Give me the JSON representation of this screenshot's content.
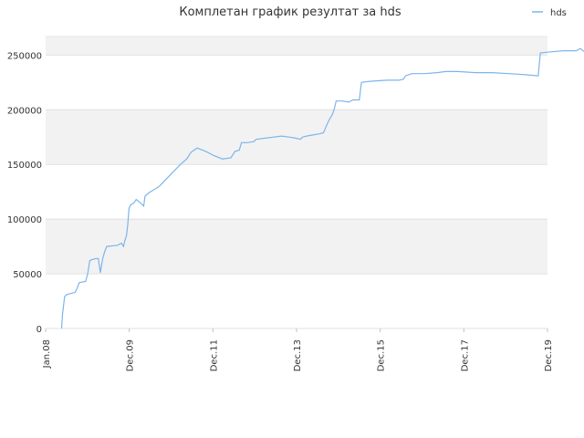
{
  "chart_data": {
    "type": "line",
    "title": "Комплетан график резултат за hds",
    "xlabel": "",
    "ylabel": "",
    "x_tick_labels": [
      "Jan.08",
      "Dec.09",
      "Dec.11",
      "Dec.13",
      "Dec.15",
      "Dec.17",
      "Dec.19"
    ],
    "y_tick_labels": [
      "0",
      "50000",
      "100000",
      "150000",
      "200000",
      "250000"
    ],
    "ylim": [
      0,
      267000
    ],
    "grid": true,
    "legend": "top-right",
    "series_color": "#7cb5ec",
    "series": [
      {
        "name": "hds",
        "points": [
          [
            2008.38,
            0
          ],
          [
            2008.4,
            13000
          ],
          [
            2008.43,
            22000
          ],
          [
            2008.45,
            29000
          ],
          [
            2008.5,
            31000
          ],
          [
            2008.6,
            32000
          ],
          [
            2008.7,
            33000
          ],
          [
            2008.75,
            37000
          ],
          [
            2008.8,
            42000
          ],
          [
            2008.95,
            43000
          ],
          [
            2009.0,
            50000
          ],
          [
            2009.05,
            62000
          ],
          [
            2009.1,
            63000
          ],
          [
            2009.2,
            64000
          ],
          [
            2009.25,
            64000
          ],
          [
            2009.3,
            51000
          ],
          [
            2009.35,
            63000
          ],
          [
            2009.4,
            70000
          ],
          [
            2009.45,
            75000
          ],
          [
            2009.7,
            76000
          ],
          [
            2009.8,
            78000
          ],
          [
            2009.85,
            75000
          ],
          [
            2009.88,
            80000
          ],
          [
            2009.92,
            85000
          ],
          [
            2009.95,
            95000
          ],
          [
            2009.98,
            110000
          ],
          [
            2010.02,
            113000
          ],
          [
            2010.1,
            115000
          ],
          [
            2010.15,
            118000
          ],
          [
            2010.25,
            115000
          ],
          [
            2010.33,
            112000
          ],
          [
            2010.36,
            121000
          ],
          [
            2010.45,
            124000
          ],
          [
            2010.7,
            130000
          ],
          [
            2010.9,
            138000
          ],
          [
            2011.2,
            150000
          ],
          [
            2011.35,
            155000
          ],
          [
            2011.45,
            161000
          ],
          [
            2011.6,
            165000
          ],
          [
            2011.8,
            162000
          ],
          [
            2012.0,
            158000
          ],
          [
            2012.2,
            155000
          ],
          [
            2012.4,
            156000
          ],
          [
            2012.5,
            162000
          ],
          [
            2012.6,
            163000
          ],
          [
            2012.65,
            170000
          ],
          [
            2012.8,
            170000
          ],
          [
            2012.95,
            171000
          ],
          [
            2013.0,
            173000
          ],
          [
            2013.2,
            174000
          ],
          [
            2013.4,
            175000
          ],
          [
            2013.6,
            176000
          ],
          [
            2013.8,
            175000
          ],
          [
            2013.95,
            174000
          ],
          [
            2014.05,
            173000
          ],
          [
            2014.1,
            175000
          ],
          [
            2014.2,
            176000
          ],
          [
            2014.35,
            177000
          ],
          [
            2014.5,
            178000
          ],
          [
            2014.6,
            179000
          ],
          [
            2014.7,
            188000
          ],
          [
            2014.75,
            192000
          ],
          [
            2014.8,
            195000
          ],
          [
            2014.85,
            200000
          ],
          [
            2014.9,
            208000
          ],
          [
            2015.05,
            208000
          ],
          [
            2015.2,
            207000
          ],
          [
            2015.3,
            209000
          ],
          [
            2015.45,
            209000
          ],
          [
            2015.5,
            225000
          ],
          [
            2015.7,
            226000
          ],
          [
            2016.1,
            227000
          ],
          [
            2016.4,
            227000
          ],
          [
            2016.5,
            228000
          ],
          [
            2016.55,
            231000
          ],
          [
            2016.7,
            233000
          ],
          [
            2017.0,
            233000
          ],
          [
            2017.3,
            234000
          ],
          [
            2017.5,
            235000
          ],
          [
            2017.8,
            235000
          ],
          [
            2018.2,
            234000
          ],
          [
            2018.6,
            234000
          ],
          [
            2019.0,
            233000
          ],
          [
            2019.4,
            232000
          ],
          [
            2019.7,
            231000
          ],
          [
            2019.75,
            252000
          ],
          [
            2020.0,
            253000
          ],
          [
            2020.3,
            254000
          ],
          [
            2020.6,
            254000
          ],
          [
            2020.7,
            256000
          ],
          [
            2020.8,
            253000
          ]
        ]
      }
    ]
  }
}
